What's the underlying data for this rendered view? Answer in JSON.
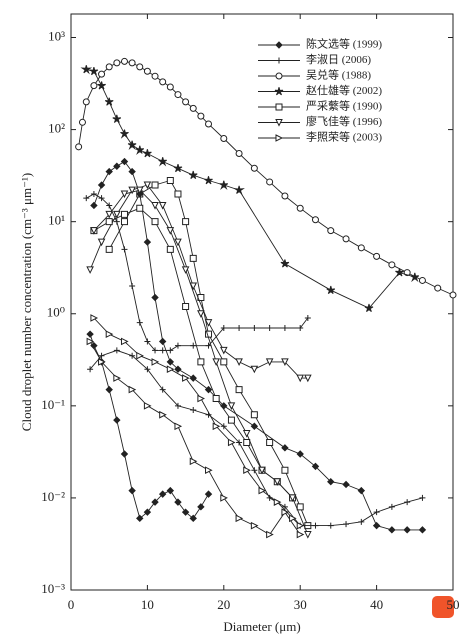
{
  "chart_data": {
    "type": "line",
    "xlabel": "Diameter (μm)",
    "ylabel": "Cloud droplet number concentration (cm⁻³ μm⁻¹)",
    "xlim": [
      0,
      50
    ],
    "ylim": [
      0.001,
      1800
    ],
    "xticks": [
      0,
      10,
      20,
      30,
      40,
      50
    ],
    "yticks": [
      {
        "value": 0.001,
        "label": "10⁻³"
      },
      {
        "value": 0.01,
        "label": "10⁻²"
      },
      {
        "value": 0.1,
        "label": "10⁻¹"
      },
      {
        "value": 1,
        "label": "10⁰"
      },
      {
        "value": 10,
        "label": "10¹"
      },
      {
        "value": 100,
        "label": "10²"
      },
      {
        "value": 1000,
        "label": "10³"
      }
    ],
    "log_y": true,
    "legend": "upper right",
    "series": [
      {
        "name": "陈文选等 (1999)",
        "color": "#222222",
        "marker": "diamond",
        "x": [
          2.5,
          3,
          4,
          5,
          6,
          7,
          8,
          9,
          10,
          11,
          12,
          13,
          14,
          15,
          16,
          17,
          18
        ],
        "values": [
          0.6,
          0.45,
          0.3,
          0.15,
          0.07,
          0.03,
          0.012,
          0.006,
          0.007,
          0.009,
          0.011,
          0.012,
          0.009,
          0.007,
          0.006,
          0.008,
          0.011
        ]
      },
      {
        "name": "李淑日 (2006)",
        "color": "#222222",
        "marker": "plus",
        "x": [
          2,
          3,
          4,
          5,
          6,
          7,
          8,
          9,
          10,
          11,
          12,
          13,
          14,
          16,
          18,
          20,
          22,
          24,
          26,
          28,
          30,
          31
        ],
        "values": [
          18,
          20,
          18,
          15,
          10,
          5,
          2,
          0.8,
          0.5,
          0.4,
          0.4,
          0.4,
          0.45,
          0.45,
          0.45,
          0.7,
          0.7,
          0.7,
          0.7,
          0.7,
          0.7,
          0.9
        ]
      },
      {
        "name": "吴兑等 (1988)",
        "color": "#222222",
        "marker": "circle",
        "x": [
          1,
          1.5,
          2,
          3,
          4,
          5,
          6,
          7,
          8,
          9,
          10,
          11,
          12,
          13,
          14,
          15,
          16,
          17,
          18,
          20,
          22,
          24,
          26,
          28,
          30,
          32,
          34,
          36,
          38,
          40,
          42,
          44,
          46,
          48,
          50
        ],
        "values": [
          65,
          120,
          200,
          300,
          400,
          480,
          530,
          550,
          530,
          480,
          430,
          380,
          330,
          290,
          240,
          200,
          170,
          140,
          115,
          80,
          55,
          38,
          27,
          19,
          14,
          10.5,
          8,
          6.5,
          5.2,
          4.2,
          3.4,
          2.8,
          2.3,
          1.9,
          1.6
        ]
      },
      {
        "name": "赵仕雄等 (2002)",
        "color": "#222222",
        "marker": "star",
        "x": [
          2,
          3,
          4,
          5,
          6,
          7,
          8,
          9,
          10,
          12,
          14,
          16,
          18,
          20,
          22,
          28,
          34,
          39,
          43,
          45
        ],
        "values": [
          450,
          430,
          300,
          200,
          130,
          90,
          68,
          60,
          55,
          45,
          38,
          32,
          28,
          25,
          22,
          3.5,
          1.8,
          1.15,
          2.8,
          2.5
        ]
      },
      {
        "name": "严采蘩等 (1990)",
        "color": "#222222",
        "marker": "square",
        "x": [
          5,
          7,
          9,
          11,
          13,
          14,
          15,
          16,
          17,
          18,
          20,
          22,
          24,
          26,
          28,
          30,
          31
        ],
        "values": [
          5,
          10,
          20,
          25,
          28,
          20,
          10,
          4,
          1.5,
          0.6,
          0.3,
          0.15,
          0.08,
          0.04,
          0.02,
          0.008,
          0.005
        ]
      },
      {
        "name": "廖飞佳等 (1996)",
        "color": "#222222",
        "marker": "triangle-down",
        "x": [
          2.5,
          4,
          6,
          8,
          10,
          12,
          14,
          16,
          18,
          20,
          22,
          24,
          26,
          28,
          30,
          31
        ],
        "values": [
          3,
          6,
          12,
          22,
          25,
          15,
          6,
          2,
          0.8,
          0.4,
          0.3,
          0.25,
          0.3,
          0.3,
          0.2,
          0.2
        ]
      },
      {
        "name": "李照荣等 (2003)",
        "color": "#222222",
        "marker": "triangle-right",
        "x": [
          2.5,
          4,
          6,
          8,
          10,
          12,
          14,
          16,
          18,
          20,
          22,
          24,
          26,
          28,
          30
        ],
        "values": [
          0.5,
          0.3,
          0.2,
          0.15,
          0.1,
          0.08,
          0.06,
          0.025,
          0.02,
          0.01,
          0.006,
          0.005,
          0.004,
          0.007,
          0.004
        ]
      },
      {
        "color": "#222222",
        "marker": "diamond",
        "x": [
          3,
          4,
          5,
          6,
          7,
          8,
          9,
          10,
          11,
          12,
          13,
          14,
          16,
          18,
          20,
          24,
          28,
          30,
          32,
          34,
          36,
          38,
          40,
          42,
          44,
          46
        ],
        "values": [
          15,
          25,
          35,
          40,
          45,
          35,
          20,
          6,
          1.5,
          0.5,
          0.3,
          0.25,
          0.2,
          0.15,
          0.1,
          0.06,
          0.035,
          0.03,
          0.022,
          0.015,
          0.014,
          0.012,
          0.005,
          0.0045,
          0.0045,
          0.0045
        ]
      },
      {
        "color": "#222222",
        "marker": "plus",
        "x": [
          2.5,
          4,
          6,
          8,
          10,
          12,
          14,
          16,
          18,
          20,
          22,
          24,
          26,
          28,
          30,
          32,
          34,
          36,
          38,
          40,
          42,
          44,
          46
        ],
        "values": [
          0.25,
          0.35,
          0.4,
          0.35,
          0.25,
          0.15,
          0.1,
          0.09,
          0.08,
          0.06,
          0.04,
          0.02,
          0.01,
          0.008,
          0.005,
          0.005,
          0.005,
          0.0052,
          0.0055,
          0.007,
          0.008,
          0.009,
          0.01
        ]
      },
      {
        "color": "#222222",
        "marker": "square",
        "x": [
          3,
          5,
          7,
          9,
          11,
          13,
          15,
          17,
          19,
          21,
          23,
          25,
          27,
          29
        ],
        "values": [
          8,
          10,
          12,
          14,
          10,
          5,
          1.2,
          0.3,
          0.12,
          0.07,
          0.04,
          0.02,
          0.015,
          0.01
        ]
      },
      {
        "color": "#222222",
        "marker": "triangle-down",
        "x": [
          3,
          5,
          7,
          9,
          11,
          13,
          15,
          17,
          19,
          21,
          23,
          25,
          27,
          29,
          31
        ],
        "values": [
          8,
          12,
          20,
          22,
          15,
          8,
          3,
          1,
          0.3,
          0.1,
          0.05,
          0.02,
          0.015,
          0.01,
          0.004
        ]
      },
      {
        "color": "#222222",
        "marker": "triangle-right",
        "x": [
          3,
          5,
          7,
          9,
          11,
          13,
          15,
          17,
          19,
          21,
          23,
          25,
          27,
          29,
          30
        ],
        "values": [
          0.9,
          0.6,
          0.5,
          0.35,
          0.3,
          0.25,
          0.2,
          0.12,
          0.06,
          0.04,
          0.02,
          0.012,
          0.009,
          0.006,
          0.005
        ]
      }
    ]
  }
}
